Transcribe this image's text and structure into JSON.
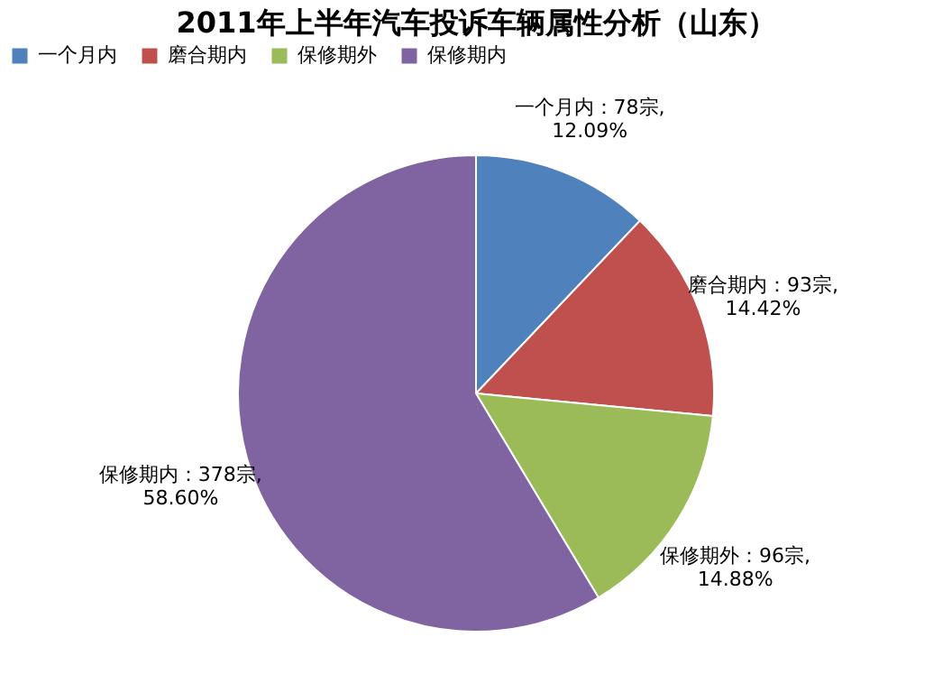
{
  "chart_data": {
    "type": "pie",
    "title": "2011年上半年汽车投诉车辆属性分析（山东）",
    "categories": [
      "一个月内",
      "磨合期内",
      "保修期外",
      "保修期内"
    ],
    "values": [
      78,
      93,
      96,
      378
    ],
    "colors": [
      "#4f81bd",
      "#c0504d",
      "#9bbb59",
      "#8064a2"
    ],
    "value_labels": [
      "一个月内：78宗,\n12.09%",
      "磨合期内：93宗,\n14.42%",
      "保修期外：96宗,\n14.88%",
      "保修期内：378宗,\n58.60%"
    ],
    "legend": "top"
  }
}
